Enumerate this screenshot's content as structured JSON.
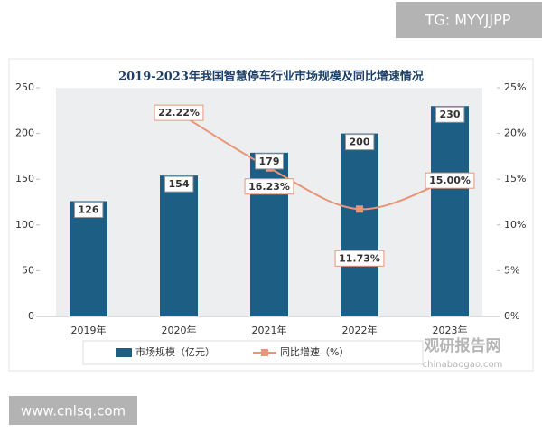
{
  "overlay": {
    "tag": "TG: MYYJJPP",
    "site": "www.cnlsq.com",
    "logo": "观研报告网",
    "logo_url": "chinabaogao.com"
  },
  "chart_data": {
    "type": "combo",
    "title": "2019-2023年我国智慧停车行业市场规模及同比增速情况",
    "categories": [
      "2019年",
      "2020年",
      "2021年",
      "2022年",
      "2023年"
    ],
    "series": [
      {
        "name": "市场规模（亿元）",
        "type": "bar",
        "color": "#1d5e84",
        "values": [
          126,
          154,
          179,
          200,
          230
        ]
      },
      {
        "name": "同比增速（%）",
        "type": "line",
        "axis": "y2",
        "color": "#e8957a",
        "values": [
          null,
          22.22,
          16.23,
          11.73,
          15.0
        ],
        "value_labels": [
          null,
          "22.22%",
          "16.23%",
          "11.73%",
          "15.00%"
        ]
      }
    ],
    "ylim": [
      0,
      250
    ],
    "yticks": [
      0,
      50,
      100,
      150,
      200,
      250
    ],
    "y2lim": [
      0,
      25
    ],
    "y2ticks": [
      {
        "value": 0,
        "label": "0%"
      },
      {
        "value": 5,
        "label": "5%"
      },
      {
        "value": 10,
        "label": "10%"
      },
      {
        "value": 15,
        "label": "15%"
      },
      {
        "value": 20,
        "label": "20%"
      },
      {
        "value": 25,
        "label": "25%"
      }
    ],
    "legend": "bottom"
  }
}
